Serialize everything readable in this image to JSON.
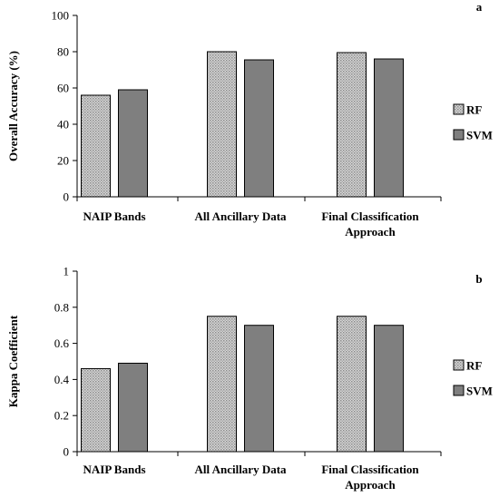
{
  "chart_data": [
    {
      "type": "bar",
      "panel_label": "a",
      "ylabel": "Overall Accuracy (%)",
      "xlabel": "",
      "ylim": [
        0,
        100
      ],
      "yticks": [
        "0",
        "20",
        "40",
        "60",
        "80",
        "100"
      ],
      "categories": [
        [
          "NAIP Bands"
        ],
        [
          "All Ancillary Data"
        ],
        [
          "Final Classification",
          "Approach"
        ]
      ],
      "series": [
        {
          "name": "RF",
          "values": [
            56,
            80,
            79.5
          ],
          "color": "#c8c8c8",
          "pattern": "dotted"
        },
        {
          "name": "SVM",
          "values": [
            59,
            75.5,
            76
          ],
          "color": "#7f7f7f",
          "pattern": "solid"
        }
      ],
      "legend_position": "right",
      "grid": false
    },
    {
      "type": "bar",
      "panel_label": "b",
      "ylabel": "Kappa Coefficient",
      "xlabel": "",
      "ylim": [
        0,
        1
      ],
      "yticks": [
        "0",
        "0.2",
        "0.4",
        "0.6",
        "0.8",
        "1"
      ],
      "categories": [
        [
          "NAIP Bands"
        ],
        [
          "All Ancillary Data"
        ],
        [
          "Final Classification",
          "Approach"
        ]
      ],
      "series": [
        {
          "name": "RF",
          "values": [
            0.46,
            0.75,
            0.75
          ],
          "color": "#c8c8c8",
          "pattern": "dotted"
        },
        {
          "name": "SVM",
          "values": [
            0.49,
            0.7,
            0.7
          ],
          "color": "#7f7f7f",
          "pattern": "solid"
        }
      ],
      "legend_position": "right",
      "grid": false
    }
  ]
}
